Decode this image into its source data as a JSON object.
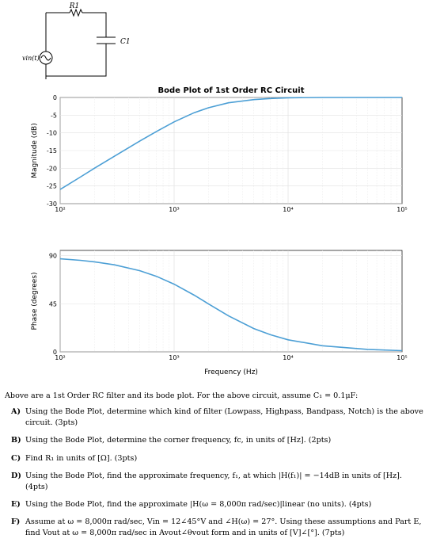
{
  "circuit": {
    "resistor_label": "R1",
    "capacitor_label": "C1",
    "source_label": "vin(t)"
  },
  "chart_data": [
    {
      "type": "line",
      "title": "Bode Plot of 1st Order RC Circuit",
      "ylabel": "Magnitude (dB)",
      "xlabel": "",
      "xscale": "log",
      "xlim": [
        100,
        100000
      ],
      "ylim": [
        -30,
        0
      ],
      "xticks": [
        "10²",
        "10³",
        "10⁴",
        "10⁵"
      ],
      "yticks": [
        "0",
        "-5",
        "-10",
        "-15",
        "-20",
        "-25",
        "-30"
      ],
      "grid": true,
      "color": "#4c9fd5",
      "series": [
        {
          "x": [
            100,
            150,
            200,
            300,
            500,
            700,
            1000,
            1500,
            2000,
            3000,
            5000,
            7000,
            10000,
            20000,
            50000,
            100000
          ],
          "y": [
            -26.0,
            -22.5,
            -20.0,
            -16.6,
            -12.3,
            -9.6,
            -6.9,
            -4.3,
            -2.9,
            -1.5,
            -0.6,
            -0.3,
            -0.1,
            0,
            0,
            0
          ]
        }
      ]
    },
    {
      "type": "line",
      "title": "",
      "ylabel": "Phase (degrees)",
      "xlabel": "Frequency (Hz)",
      "xscale": "log",
      "xlim": [
        100,
        100000
      ],
      "ylim": [
        0,
        95
      ],
      "xticks": [
        "10²",
        "10³",
        "10⁴",
        "10⁵"
      ],
      "yticks": [
        "0",
        "45",
        "90"
      ],
      "grid": true,
      "color": "#4c9fd5",
      "series": [
        {
          "x": [
            100,
            150,
            200,
            300,
            500,
            700,
            1000,
            1500,
            2000,
            3000,
            5000,
            7000,
            10000,
            20000,
            50000,
            100000
          ],
          "y": [
            87.1,
            85.7,
            84.3,
            81.5,
            76.0,
            70.7,
            63.4,
            53.1,
            45.0,
            33.7,
            21.8,
            16.0,
            11.3,
            5.7,
            2.3,
            1.1
          ]
        }
      ]
    }
  ],
  "text": {
    "intro": "Above are a 1st Order RC filter and its bode plot. For the above circuit, assume C₁ = 0.1μF:",
    "questions": [
      {
        "label": "A)",
        "text": "Using the Bode Plot, determine which kind of filter (Lowpass, Highpass, Bandpass, Notch) is the above circuit. (3pts)"
      },
      {
        "label": "B)",
        "text": "Using the Bode Plot, determine the corner frequency, fc, in units of [Hz]. (2pts)"
      },
      {
        "label": "C)",
        "text": "Find R₁ in units of [Ω]. (3pts)"
      },
      {
        "label": "D)",
        "text": "Using the Bode Plot, find the approximate frequency, f₁, at which |H(f₁)| = −14dB in units of [Hz]. (4pts)"
      },
      {
        "label": "E)",
        "text": "Using the Bode Plot, find the approximate |H(ω = 8,000π rad/sec)|linear (no units). (4pts)"
      },
      {
        "label": "F)",
        "text": "Assume at ω = 8,000π rad/sec, Vin = 12∠45°V and ∠H(ω) = 27°. Using these assumptions and Part E, find Vout at ω = 8,000π rad/sec in Avout∠θvout form and in units of [V]∠[°]. (7pts)"
      }
    ]
  }
}
